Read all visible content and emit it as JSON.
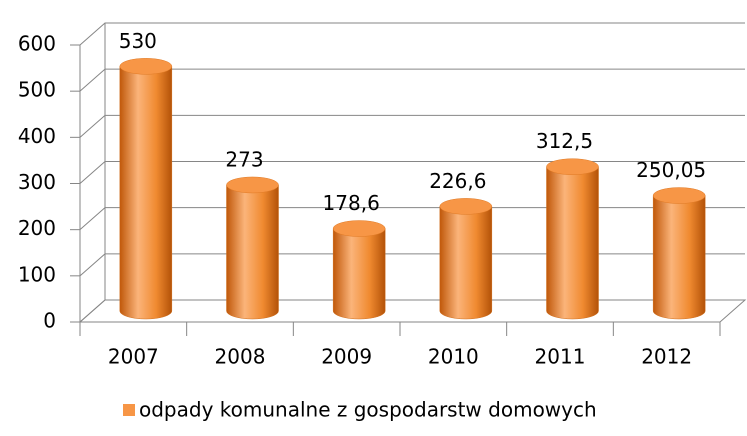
{
  "chart_data": {
    "type": "bar",
    "categories": [
      "2007",
      "2008",
      "2009",
      "2010",
      "2011",
      "2012"
    ],
    "series": [
      {
        "name": "odpady komunalne z gospodarstw domowych",
        "color": "#f79646",
        "values": [
          530,
          273,
          178.6,
          226.6,
          312.5,
          250.05
        ],
        "value_labels": [
          "530",
          "273",
          "178,6",
          "226,6",
          "312,5",
          "250,05"
        ]
      }
    ],
    "ylim": [
      0,
      600
    ],
    "yticks": [
      0,
      100,
      200,
      300,
      400,
      500,
      600
    ],
    "grid": true,
    "legend": "bottom"
  }
}
